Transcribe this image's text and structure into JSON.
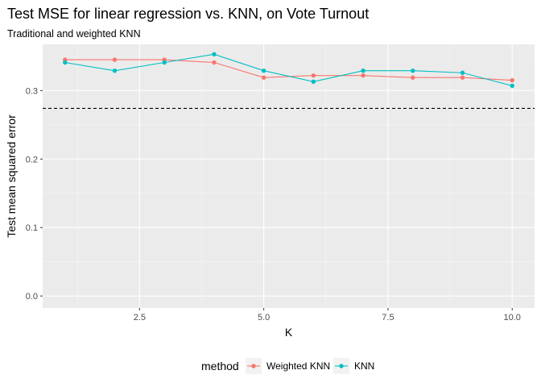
{
  "chart_data": {
    "type": "line",
    "title": "Test MSE for linear regression vs. KNN, on Vote Turnout",
    "subtitle": "Traditional and weighted KNN",
    "xlabel": "K",
    "ylabel": "Test mean squared error",
    "xlim": [
      0.55,
      10.45
    ],
    "ylim": [
      -0.0175,
      0.3675
    ],
    "x_ticks": [
      2.5,
      5.0,
      7.5,
      10.0
    ],
    "x_tick_labels": [
      "2.5",
      "5.0",
      "7.5",
      "10.0"
    ],
    "y_ticks": [
      0.0,
      0.1,
      0.2,
      0.3
    ],
    "y_tick_labels": [
      "0.0",
      "0.1",
      "0.2",
      "0.3"
    ],
    "grid": true,
    "legend": {
      "title": "method",
      "position": "bottom"
    },
    "reference_line": {
      "y": 0.274,
      "style": "dashed",
      "color": "#000000"
    },
    "x": [
      1,
      2,
      3,
      4,
      5,
      6,
      7,
      8,
      9,
      10
    ],
    "series": [
      {
        "name": "Weighted KNN",
        "color": "#F8766D",
        "values": [
          0.345,
          0.345,
          0.345,
          0.341,
          0.319,
          0.322,
          0.322,
          0.319,
          0.319,
          0.315
        ]
      },
      {
        "name": "KNN",
        "color": "#00BFC4",
        "values": [
          0.341,
          0.329,
          0.341,
          0.353,
          0.329,
          0.313,
          0.329,
          0.329,
          0.326,
          0.307
        ]
      }
    ]
  }
}
